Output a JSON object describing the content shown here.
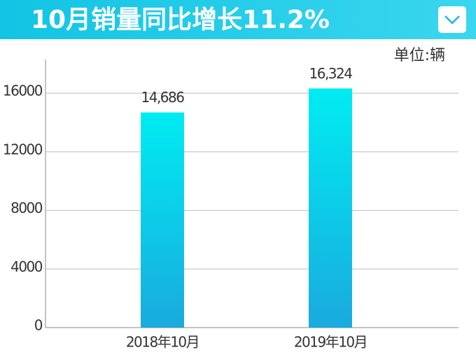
{
  "chart_data": {
    "type": "bar",
    "title": "10月销量同比增长11.2%",
    "unit_label": "单位:辆",
    "categories": [
      "2018年10月",
      "2019年10月"
    ],
    "values": [
      14686,
      16324
    ],
    "value_labels": [
      "14,686",
      "16,324"
    ],
    "ylim": [
      0,
      18300
    ],
    "yticks": [
      0,
      4000,
      8000,
      12000,
      16000
    ],
    "grid": true
  }
}
